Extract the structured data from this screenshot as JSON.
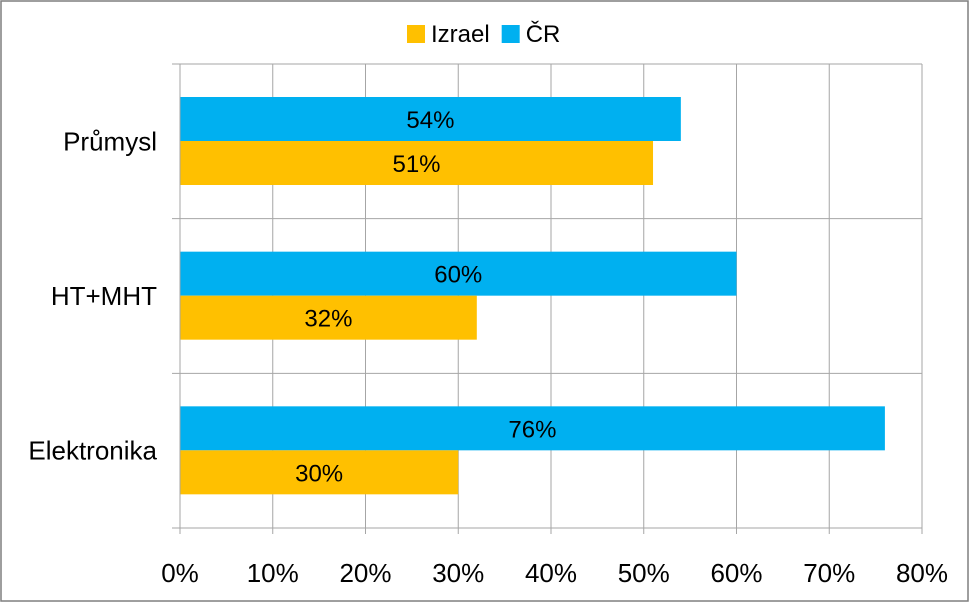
{
  "chart_data": {
    "type": "bar",
    "orientation": "horizontal",
    "title": "",
    "xlabel": "",
    "ylabel": "",
    "categories": [
      "Průmysl",
      "HT+MHT",
      "Elektronika"
    ],
    "series": [
      {
        "name": "ČR",
        "values": [
          54,
          60,
          76
        ],
        "labels": [
          "54%",
          "60%",
          "76%"
        ],
        "color": "#00B0F0"
      },
      {
        "name": "Izrael",
        "values": [
          51,
          32,
          30
        ],
        "labels": [
          "51%",
          "32%",
          "30%"
        ],
        "color": "#FFC000"
      }
    ],
    "legend": {
      "position": "top",
      "entries": [
        {
          "name": "Izrael",
          "color": "#FFC000"
        },
        {
          "name": "ČR",
          "color": "#00B0F0"
        }
      ]
    },
    "xlim": [
      0,
      80
    ],
    "x_ticks": [
      0,
      10,
      20,
      30,
      40,
      50,
      60,
      70,
      80
    ],
    "x_tick_labels": [
      "0%",
      "10%",
      "20%",
      "30%",
      "40%",
      "50%",
      "60%",
      "70%",
      "80%"
    ],
    "grid": {
      "vertical": true,
      "horizontal_separators": true
    },
    "colors": {
      "gridline": "#A6A6A6",
      "border": "#7F7F7F"
    }
  }
}
